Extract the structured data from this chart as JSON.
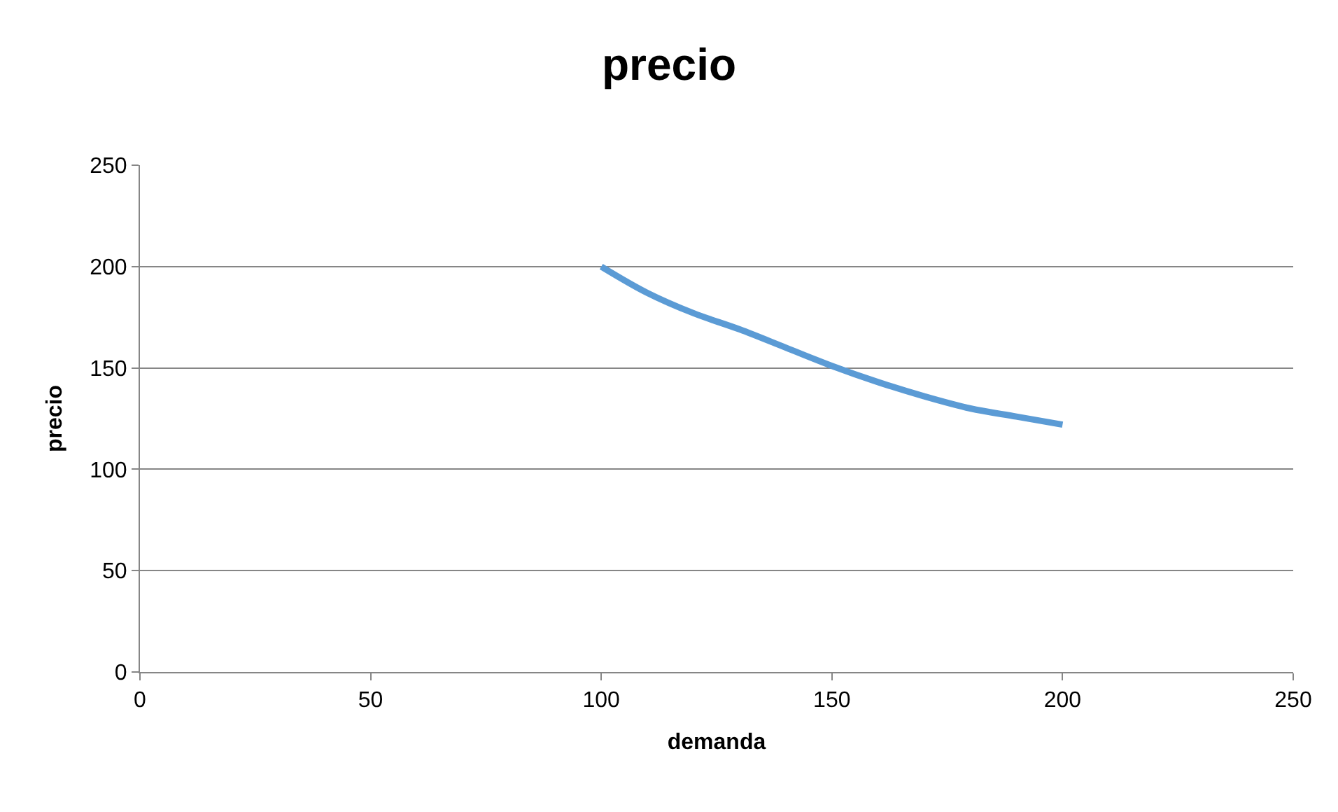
{
  "chart_data": {
    "type": "line",
    "title": "precio",
    "xlabel": "demanda",
    "ylabel": "precio",
    "xlim": [
      0,
      250
    ],
    "xticks": [
      0,
      50,
      100,
      150,
      200,
      250
    ],
    "ylim": [
      0,
      250
    ],
    "yticks": [
      0,
      50,
      100,
      150,
      200,
      250
    ],
    "grid": "y",
    "marker": "none",
    "line_style": "solid",
    "series": [
      {
        "color": "#5b9bd5",
        "x": [
          100,
          110,
          120,
          130,
          140,
          150,
          160,
          170,
          180,
          190,
          200
        ],
        "values": [
          200,
          187,
          177,
          169,
          160,
          151,
          143,
          136,
          130,
          126,
          122
        ]
      }
    ]
  }
}
